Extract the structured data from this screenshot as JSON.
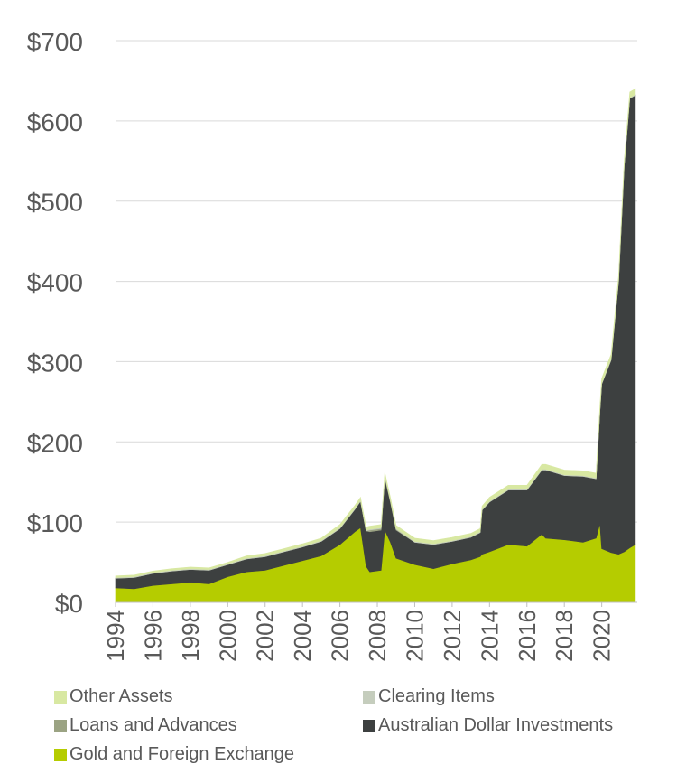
{
  "chart_data": {
    "type": "area",
    "title": "",
    "xlabel": "",
    "ylabel": "",
    "ylim": [
      0,
      700
    ],
    "xlim": [
      1994,
      2021.9
    ],
    "y_ticks": [
      "$0",
      "$100",
      "$200",
      "$300",
      "$400",
      "$500",
      "$600",
      "$700"
    ],
    "y_tick_values": [
      0,
      100,
      200,
      300,
      400,
      500,
      600,
      700
    ],
    "x_ticks": [
      "1994",
      "1996",
      "1998",
      "2000",
      "2002",
      "2004",
      "2006",
      "2008",
      "2010",
      "2012",
      "2014",
      "2016",
      "2018",
      "2020"
    ],
    "x_tick_values": [
      1994,
      1996,
      1998,
      2000,
      2002,
      2004,
      2006,
      2008,
      2010,
      2012,
      2014,
      2016,
      2018,
      2020
    ],
    "grid": "horizontal",
    "legend_position": "bottom",
    "stacked": true,
    "x": [
      1994,
      1995,
      1996,
      1997,
      1998,
      1999,
      2000,
      2001,
      2002,
      2003,
      2004,
      2005,
      2006,
      2006.8,
      2007.1,
      2007.4,
      2007.6,
      2008.2,
      2008.4,
      2008.7,
      2009,
      2010,
      2011,
      2012,
      2013,
      2013.5,
      2013.6,
      2014,
      2015,
      2016,
      2016.8,
      2017,
      2018,
      2019,
      2019.7,
      2019.9,
      2020,
      2020.5,
      2020.9,
      2021.2,
      2021.5,
      2021.8
    ],
    "series": [
      {
        "name": "Gold and Foreign Exchange",
        "color": "#b5cc00",
        "values": [
          18,
          17,
          21,
          23,
          25,
          23,
          32,
          38,
          40,
          46,
          52,
          58,
          72,
          88,
          93,
          45,
          38,
          40,
          90,
          75,
          55,
          47,
          42,
          48,
          53,
          57,
          60,
          63,
          72,
          70,
          85,
          80,
          78,
          75,
          80,
          98,
          67,
          62,
          60,
          63,
          68,
          72
        ]
      },
      {
        "name": "Australian Dollar Investments",
        "color": "#3d4040",
        "values": [
          12,
          14,
          15,
          16,
          16,
          17,
          15,
          16,
          17,
          17,
          17,
          18,
          20,
          28,
          33,
          44,
          50,
          50,
          65,
          50,
          35,
          28,
          30,
          28,
          28,
          30,
          55,
          62,
          68,
          70,
          80,
          85,
          80,
          82,
          74,
          140,
          205,
          240,
          340,
          480,
          560,
          560
        ]
      },
      {
        "name": "Loans and Advances",
        "color": "#9ba383",
        "values": [
          0,
          0,
          0,
          0,
          0,
          0,
          0,
          0,
          0,
          0,
          0,
          0,
          0,
          0,
          0,
          0,
          2,
          2,
          2,
          1,
          1,
          0,
          0,
          0,
          0,
          0,
          0,
          0,
          0,
          0,
          0,
          0,
          0,
          0,
          0,
          0,
          0,
          0,
          0,
          0,
          0,
          0
        ]
      },
      {
        "name": "Clearing Items",
        "color": "#c5cdbd",
        "values": [
          1,
          1,
          1,
          1,
          1,
          1,
          1,
          1,
          1,
          1,
          1,
          1,
          1,
          1,
          1,
          1,
          1,
          1,
          1,
          1,
          1,
          1,
          1,
          1,
          1,
          1,
          1,
          1,
          1,
          1,
          1,
          1,
          1,
          1,
          1,
          1,
          1,
          1,
          1,
          1,
          1,
          1
        ]
      },
      {
        "name": "Other Assets",
        "color": "#d8e8a2",
        "values": [
          2,
          2,
          2,
          2,
          2,
          2,
          2,
          3,
          3,
          3,
          3,
          3,
          4,
          4,
          4,
          4,
          4,
          4,
          4,
          4,
          4,
          4,
          4,
          4,
          4,
          4,
          4,
          5,
          5,
          5,
          6,
          6,
          6,
          6,
          6,
          6,
          6,
          6,
          6,
          6,
          7,
          7
        ]
      }
    ]
  },
  "legend": [
    {
      "label": "Other Assets",
      "color": "#d8e8a2"
    },
    {
      "label": "Clearing Items",
      "color": "#c5cdbd"
    },
    {
      "label": "Loans and Advances",
      "color": "#9ba383"
    },
    {
      "label": "Australian Dollar Investments",
      "color": "#3d4040"
    },
    {
      "label": "Gold and Foreign Exchange",
      "color": "#b5cc00"
    }
  ],
  "colors": {
    "axis_text": "#595959",
    "gridline": "#d9d9d9",
    "axis_line": "#bfbfbf"
  }
}
